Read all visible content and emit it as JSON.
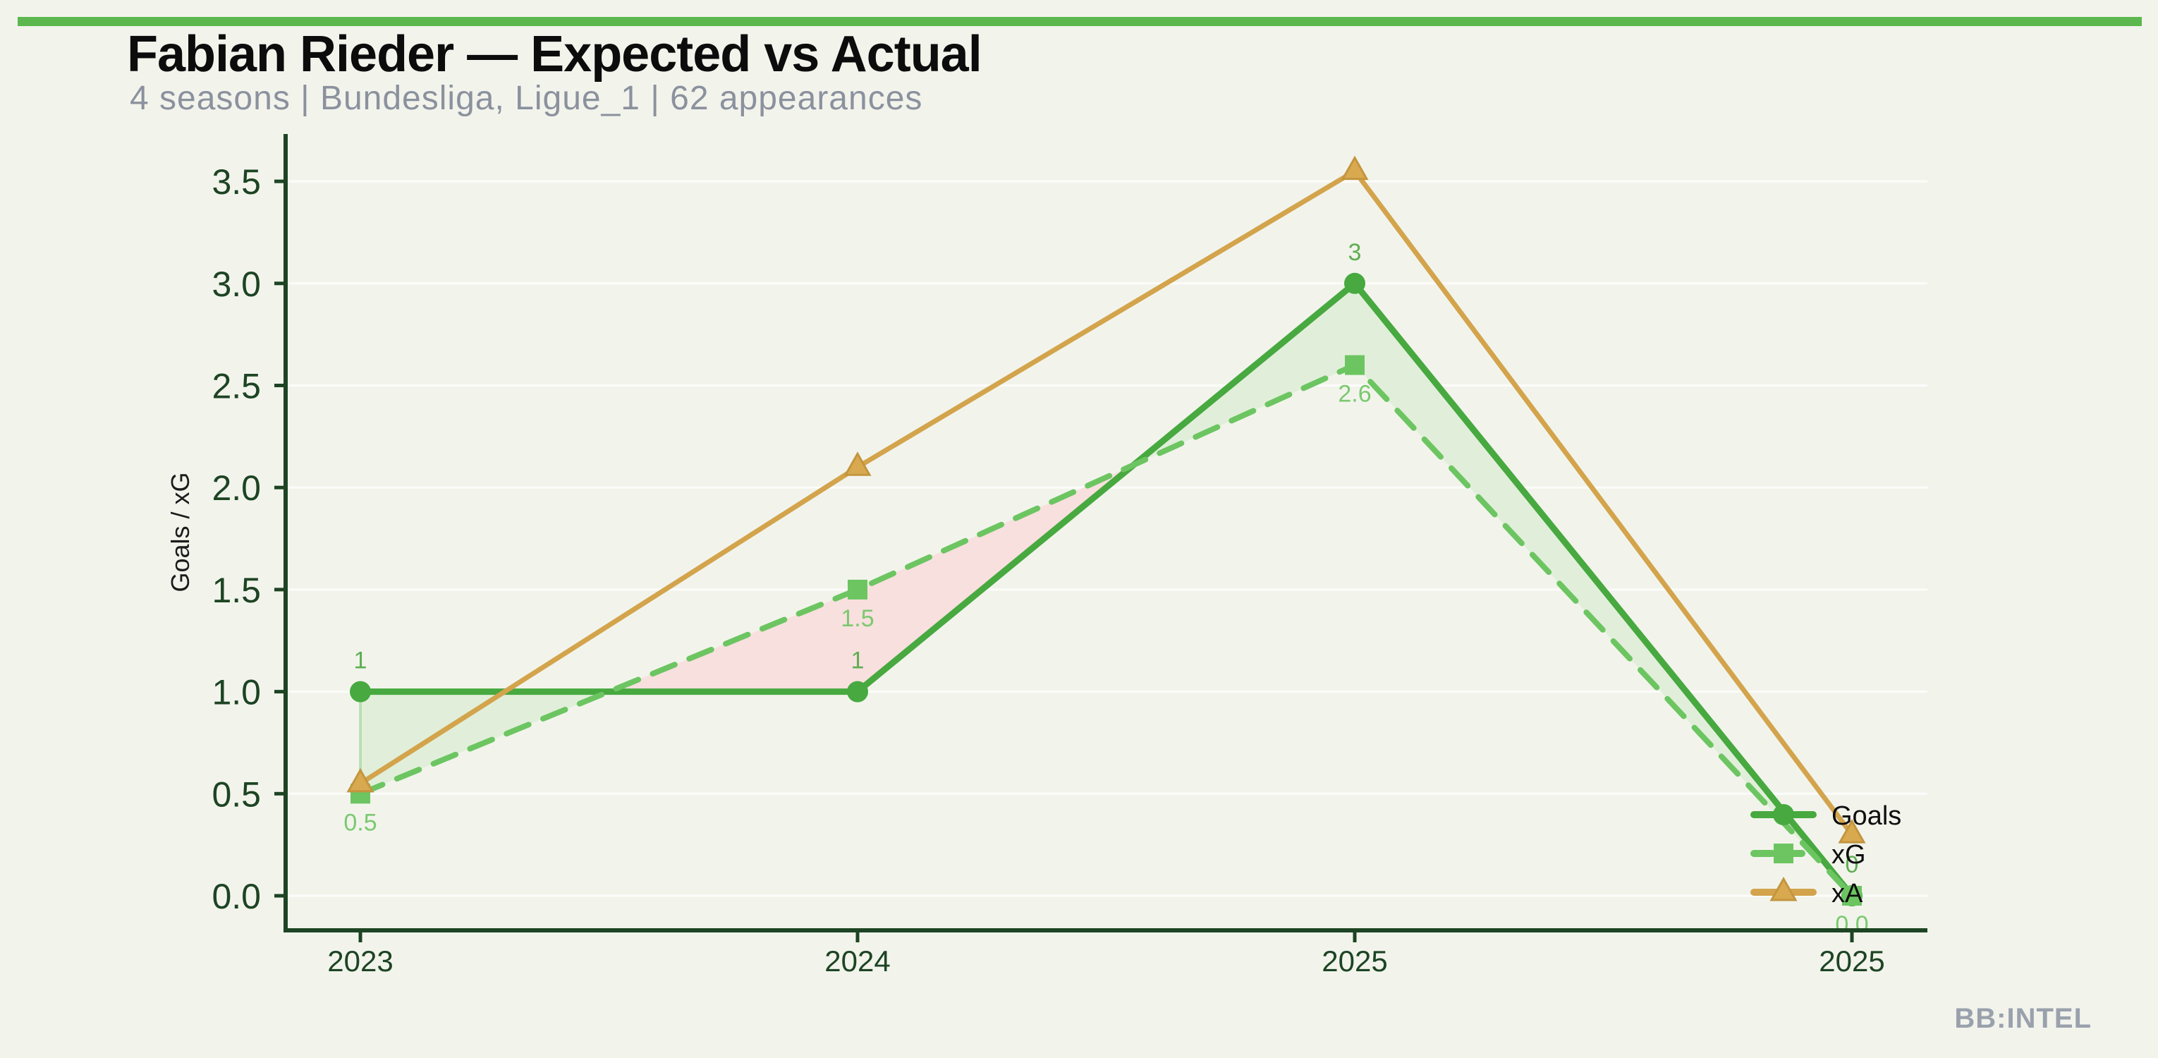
{
  "page": {
    "background": "#f2f4ec",
    "accent_bar_color": "#5cb84e"
  },
  "header": {
    "title": "Fabian Rieder — Expected vs Actual",
    "subtitle": "4 seasons | Bundesliga, Ligue_1 | 62 appearances"
  },
  "watermark": "BB:INTEL",
  "chart_data": {
    "type": "line",
    "title": "Fabian Rieder — Expected vs Actual",
    "subtitle": "4 seasons | Bundesliga, Ligue_1 | 62 appearances",
    "xlabel": "",
    "ylabel": "Goals / xG",
    "categories": [
      "2023",
      "2024",
      "2025",
      "2025"
    ],
    "yticks": [
      0.0,
      0.5,
      1.0,
      1.5,
      2.0,
      2.5,
      3.0,
      3.5
    ],
    "ylim": [
      -0.18,
      3.72
    ],
    "grid": true,
    "legend": {
      "position": "inside-right",
      "entries": [
        "Goals",
        "xG",
        "xA"
      ]
    },
    "series": [
      {
        "name": "Goals",
        "marker": "circle",
        "line_style": "solid",
        "color": "#47a93f",
        "label_color": "#5fae52",
        "label_position": "above",
        "values": [
          1,
          1,
          3,
          0
        ],
        "point_labels": [
          "1",
          "1",
          "3",
          "0"
        ]
      },
      {
        "name": "xG",
        "marker": "square",
        "line_style": "dashed",
        "color": "#6cc561",
        "label_color": "#7bc96f",
        "label_position": "below",
        "values": [
          0.5,
          1.5,
          2.6,
          0.0
        ],
        "point_labels": [
          "0.5",
          "1.5",
          "2.6",
          "0.0"
        ]
      },
      {
        "name": "xA",
        "marker": "triangle",
        "line_style": "solid",
        "color": "#d3a44c",
        "marker_fill": "#d9a94f",
        "marker_edge": "#c3953e",
        "values": [
          0.55,
          2.1,
          3.55,
          0.3
        ],
        "point_labels": []
      }
    ],
    "fill_between": {
      "a": "Goals",
      "b": "xG",
      "above_color": "#e1efda",
      "below_color": "#f8e0de"
    },
    "axis_color": "#1d4423"
  }
}
